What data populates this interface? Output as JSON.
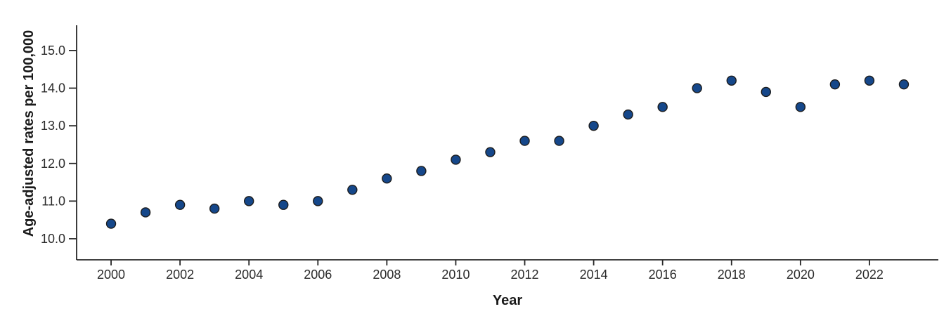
{
  "chart_data": {
    "type": "scatter",
    "title": "",
    "xlabel": "Year",
    "ylabel": "Age-adjusted rates per 100,000",
    "x": [
      2000,
      2001,
      2002,
      2003,
      2004,
      2005,
      2006,
      2007,
      2008,
      2009,
      2010,
      2011,
      2012,
      2013,
      2014,
      2015,
      2016,
      2017,
      2018,
      2019,
      2020,
      2021,
      2022,
      2023
    ],
    "y": [
      10.4,
      10.7,
      10.9,
      10.8,
      11.0,
      10.9,
      11.0,
      11.3,
      11.6,
      11.8,
      12.1,
      12.3,
      12.6,
      12.6,
      13.0,
      13.3,
      13.5,
      14.0,
      14.2,
      13.9,
      13.5,
      14.1,
      14.2,
      14.1
    ],
    "xlim": [
      1999,
      2024
    ],
    "ylim": [
      9.44,
      15.67
    ],
    "xticks": {
      "values": [
        2000,
        2002,
        2004,
        2006,
        2008,
        2010,
        2012,
        2014,
        2016,
        2018,
        2020,
        2022
      ],
      "labels": [
        "2000",
        "2002",
        "2004",
        "2006",
        "2008",
        "2010",
        "2012",
        "2014",
        "2016",
        "2018",
        "2020",
        "2022"
      ]
    },
    "yticks": {
      "values": [
        10,
        11,
        12,
        13,
        14,
        15
      ],
      "labels": [
        "10.0",
        "11.0",
        "12.0",
        "13.0",
        "14.0",
        "15.0"
      ]
    },
    "grid": false,
    "legend": null,
    "marker": {
      "shape": "circle",
      "fill": "#15478a",
      "stroke": "#1c1c1c"
    },
    "colors": {
      "axis": "#262626",
      "tick_text": "#2b2b2b",
      "label_text": "#1a1a1a",
      "background": "#ffffff"
    }
  }
}
